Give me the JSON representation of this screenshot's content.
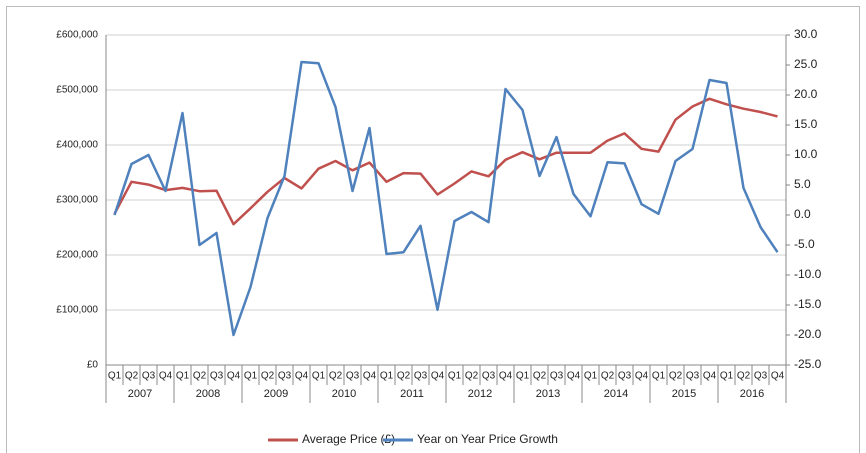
{
  "chart_data": {
    "type": "line",
    "categories": [
      "Q1",
      "Q2",
      "Q3",
      "Q4",
      "Q1",
      "Q2",
      "Q3",
      "Q4",
      "Q1",
      "Q2",
      "Q3",
      "Q4",
      "Q1",
      "Q2",
      "Q3",
      "Q4",
      "Q1",
      "Q2",
      "Q3",
      "Q4",
      "Q1",
      "Q2",
      "Q3",
      "Q4",
      "Q1",
      "Q2",
      "Q3",
      "Q4",
      "Q1",
      "Q2",
      "Q3",
      "Q4",
      "Q1",
      "Q2",
      "Q3",
      "Q4",
      "Q1",
      "Q2",
      "Q3",
      "Q4"
    ],
    "years": [
      "2007",
      "2008",
      "2009",
      "2010",
      "2011",
      "2012",
      "2013",
      "2014",
      "2015",
      "2016"
    ],
    "series": [
      {
        "name": "Average Price (£)",
        "color": "#c0504d",
        "axis": "y",
        "values": [
          275000,
          333000,
          328000,
          318000,
          322000,
          316000,
          317000,
          256000,
          285000,
          315000,
          340000,
          321000,
          357000,
          371000,
          354000,
          368000,
          333000,
          349000,
          348000,
          310000,
          330000,
          352000,
          343000,
          373000,
          387000,
          374000,
          386000,
          386000,
          386000,
          408000,
          421000,
          393000,
          388000,
          446000,
          470000,
          484000,
          474000,
          466000,
          460000,
          452000
        ]
      },
      {
        "name": "Year on Year Price Growth",
        "color": "#4f81bd",
        "axis": "y2",
        "values": [
          0.0,
          8.5,
          10.0,
          4.0,
          17.0,
          -5.0,
          -3.0,
          -20.0,
          -12.0,
          -0.5,
          6.5,
          25.5,
          25.3,
          18.0,
          4.0,
          14.5,
          -6.5,
          -6.2,
          -1.8,
          -15.8,
          -1.0,
          0.5,
          -1.2,
          21.0,
          17.5,
          6.5,
          13.0,
          3.5,
          -0.2,
          8.8,
          8.6,
          1.8,
          0.2,
          9.0,
          11.0,
          22.5,
          22.0,
          4.5,
          -2.0,
          -6.2
        ]
      }
    ],
    "ylim": [
      0,
      600000
    ],
    "yticks": [
      {
        "value": 0,
        "label": "£0"
      },
      {
        "value": 100000,
        "label": "£100,000"
      },
      {
        "value": 200000,
        "label": "£200,000"
      },
      {
        "value": 300000,
        "label": "£300,000"
      },
      {
        "value": 400000,
        "label": "£400,000"
      },
      {
        "value": 500000,
        "label": "£500,000"
      },
      {
        "value": 600000,
        "label": "£600,000"
      }
    ],
    "y2lim": [
      -25,
      30
    ],
    "y2ticks": [
      {
        "value": 30,
        "label": "30.0"
      },
      {
        "value": 25,
        "label": "25.0"
      },
      {
        "value": 20,
        "label": "20.0"
      },
      {
        "value": 15,
        "label": "15.0"
      },
      {
        "value": 10,
        "label": "10.0"
      },
      {
        "value": 5,
        "label": "5.0"
      },
      {
        "value": 0,
        "label": "0.0"
      },
      {
        "value": -5,
        "label": "-5.0"
      },
      {
        "value": -10,
        "label": "-10.0"
      },
      {
        "value": -15,
        "label": "-15.0"
      },
      {
        "value": -20,
        "label": "-20.0"
      },
      {
        "value": -25,
        "label": "-25.0"
      }
    ],
    "grid": true,
    "legend": "bottom"
  }
}
